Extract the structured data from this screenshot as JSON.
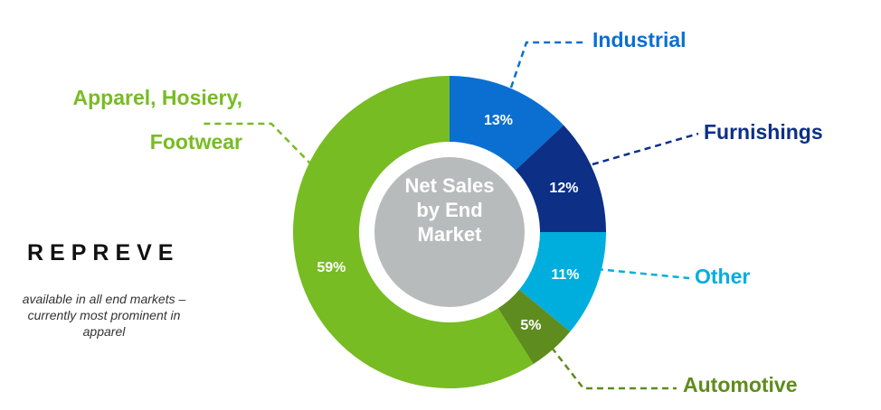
{
  "chart_data": {
    "type": "pie",
    "donut": true,
    "center_label": "Net Sales by End Market",
    "categories": [
      "Industrial",
      "Furnishings",
      "Other",
      "Automotive",
      "Apparel, Hosiery, Footwear"
    ],
    "values": [
      13,
      12,
      11,
      5,
      59
    ],
    "value_labels": [
      "13%",
      "12%",
      "11%",
      "5%",
      "59%"
    ],
    "colors": [
      "#0a6fd1",
      "#0d2f86",
      "#00aede",
      "#5e8c1e",
      "#77bc22"
    ],
    "logo_text": "REPREVE",
    "note": "available in all end markets – currently most prominent in apparel"
  }
}
